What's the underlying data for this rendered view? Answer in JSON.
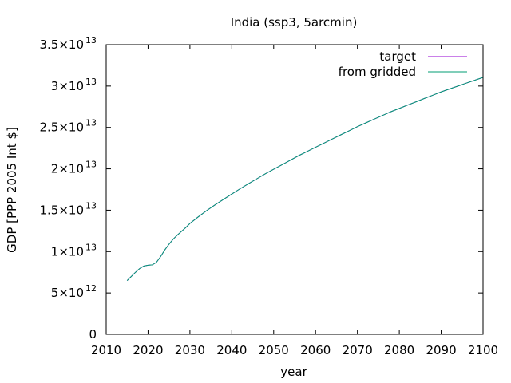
{
  "chart_data": {
    "type": "line",
    "title": "India (ssp3, 5arcmin)",
    "xlabel": "year",
    "ylabel": "GDP [PPP 2005 Int $]",
    "xlim": [
      2010,
      2100
    ],
    "ylim": [
      0,
      35000000000000
    ],
    "grid": false,
    "legend_position": "top-right",
    "x_ticks": [
      {
        "value": 2010,
        "label": "2010"
      },
      {
        "value": 2020,
        "label": "2020"
      },
      {
        "value": 2030,
        "label": "2030"
      },
      {
        "value": 2040,
        "label": "2040"
      },
      {
        "value": 2050,
        "label": "2050"
      },
      {
        "value": 2060,
        "label": "2060"
      },
      {
        "value": 2070,
        "label": "2070"
      },
      {
        "value": 2080,
        "label": "2080"
      },
      {
        "value": 2090,
        "label": "2090"
      },
      {
        "value": 2100,
        "label": "2100"
      }
    ],
    "y_ticks": [
      {
        "value": 0,
        "mantissa": "0",
        "exponent": ""
      },
      {
        "value": 5000000000000,
        "mantissa": "5×10",
        "exponent": "12"
      },
      {
        "value": 10000000000000,
        "mantissa": "1×10",
        "exponent": "13"
      },
      {
        "value": 15000000000000,
        "mantissa": "1.5×10",
        "exponent": "13"
      },
      {
        "value": 20000000000000,
        "mantissa": "2×10",
        "exponent": "13"
      },
      {
        "value": 25000000000000,
        "mantissa": "2.5×10",
        "exponent": "13"
      },
      {
        "value": 30000000000000,
        "mantissa": "3×10",
        "exponent": "13"
      },
      {
        "value": 35000000000000,
        "mantissa": "3.5×10",
        "exponent": "13"
      }
    ],
    "x": [
      2015,
      2016,
      2017,
      2018,
      2019,
      2020,
      2021,
      2022,
      2023,
      2024,
      2025,
      2026,
      2027,
      2028,
      2029,
      2030,
      2032,
      2034,
      2036,
      2038,
      2040,
      2042,
      2044,
      2046,
      2048,
      2050,
      2052,
      2054,
      2056,
      2058,
      2060,
      2062,
      2064,
      2066,
      2068,
      2070,
      2072,
      2074,
      2076,
      2078,
      2080,
      2082,
      2084,
      2086,
      2088,
      2090,
      2092,
      2094,
      2096,
      2098,
      2100
    ],
    "series": [
      {
        "name": "target",
        "color": "#9400d3",
        "values": [
          6500000000000.0,
          7000000000000.0,
          7500000000000.0,
          7950000000000.0,
          8250000000000.0,
          8350000000000.0,
          8400000000000.0,
          8700000000000.0,
          9400000000000.0,
          10200000000000.0,
          10900000000000.0,
          11500000000000.0,
          12000000000000.0,
          12450000000000.0,
          12900000000000.0,
          13400000000000.0,
          14200000000000.0,
          14950000000000.0,
          15650000000000.0,
          16300000000000.0,
          16950000000000.0,
          17600000000000.0,
          18200000000000.0,
          18800000000000.0,
          19400000000000.0,
          19950000000000.0,
          20500000000000.0,
          21050000000000.0,
          21600000000000.0,
          22100000000000.0,
          22600000000000.0,
          23100000000000.0,
          23600000000000.0,
          24100000000000.0,
          24600000000000.0,
          25100000000000.0,
          25550000000000.0,
          26000000000000.0,
          26450000000000.0,
          26900000000000.0,
          27300000000000.0,
          27700000000000.0,
          28100000000000.0,
          28500000000000.0,
          28900000000000.0,
          29300000000000.0,
          29650000000000.0,
          30000000000000.0,
          30350000000000.0,
          30700000000000.0,
          31050000000000.0
        ]
      },
      {
        "name": "from gridded",
        "color": "#009e73",
        "values": [
          6500000000000.0,
          7000000000000.0,
          7500000000000.0,
          7950000000000.0,
          8250000000000.0,
          8350000000000.0,
          8400000000000.0,
          8700000000000.0,
          9400000000000.0,
          10200000000000.0,
          10900000000000.0,
          11500000000000.0,
          12000000000000.0,
          12450000000000.0,
          12900000000000.0,
          13400000000000.0,
          14200000000000.0,
          14950000000000.0,
          15650000000000.0,
          16300000000000.0,
          16950000000000.0,
          17600000000000.0,
          18200000000000.0,
          18800000000000.0,
          19400000000000.0,
          19950000000000.0,
          20500000000000.0,
          21050000000000.0,
          21600000000000.0,
          22100000000000.0,
          22600000000000.0,
          23100000000000.0,
          23600000000000.0,
          24100000000000.0,
          24600000000000.0,
          25100000000000.0,
          25550000000000.0,
          26000000000000.0,
          26450000000000.0,
          26900000000000.0,
          27300000000000.0,
          27700000000000.0,
          28100000000000.0,
          28500000000000.0,
          28900000000000.0,
          29300000000000.0,
          29650000000000.0,
          30000000000000.0,
          30350000000000.0,
          30700000000000.0,
          31050000000000.0
        ]
      }
    ]
  }
}
